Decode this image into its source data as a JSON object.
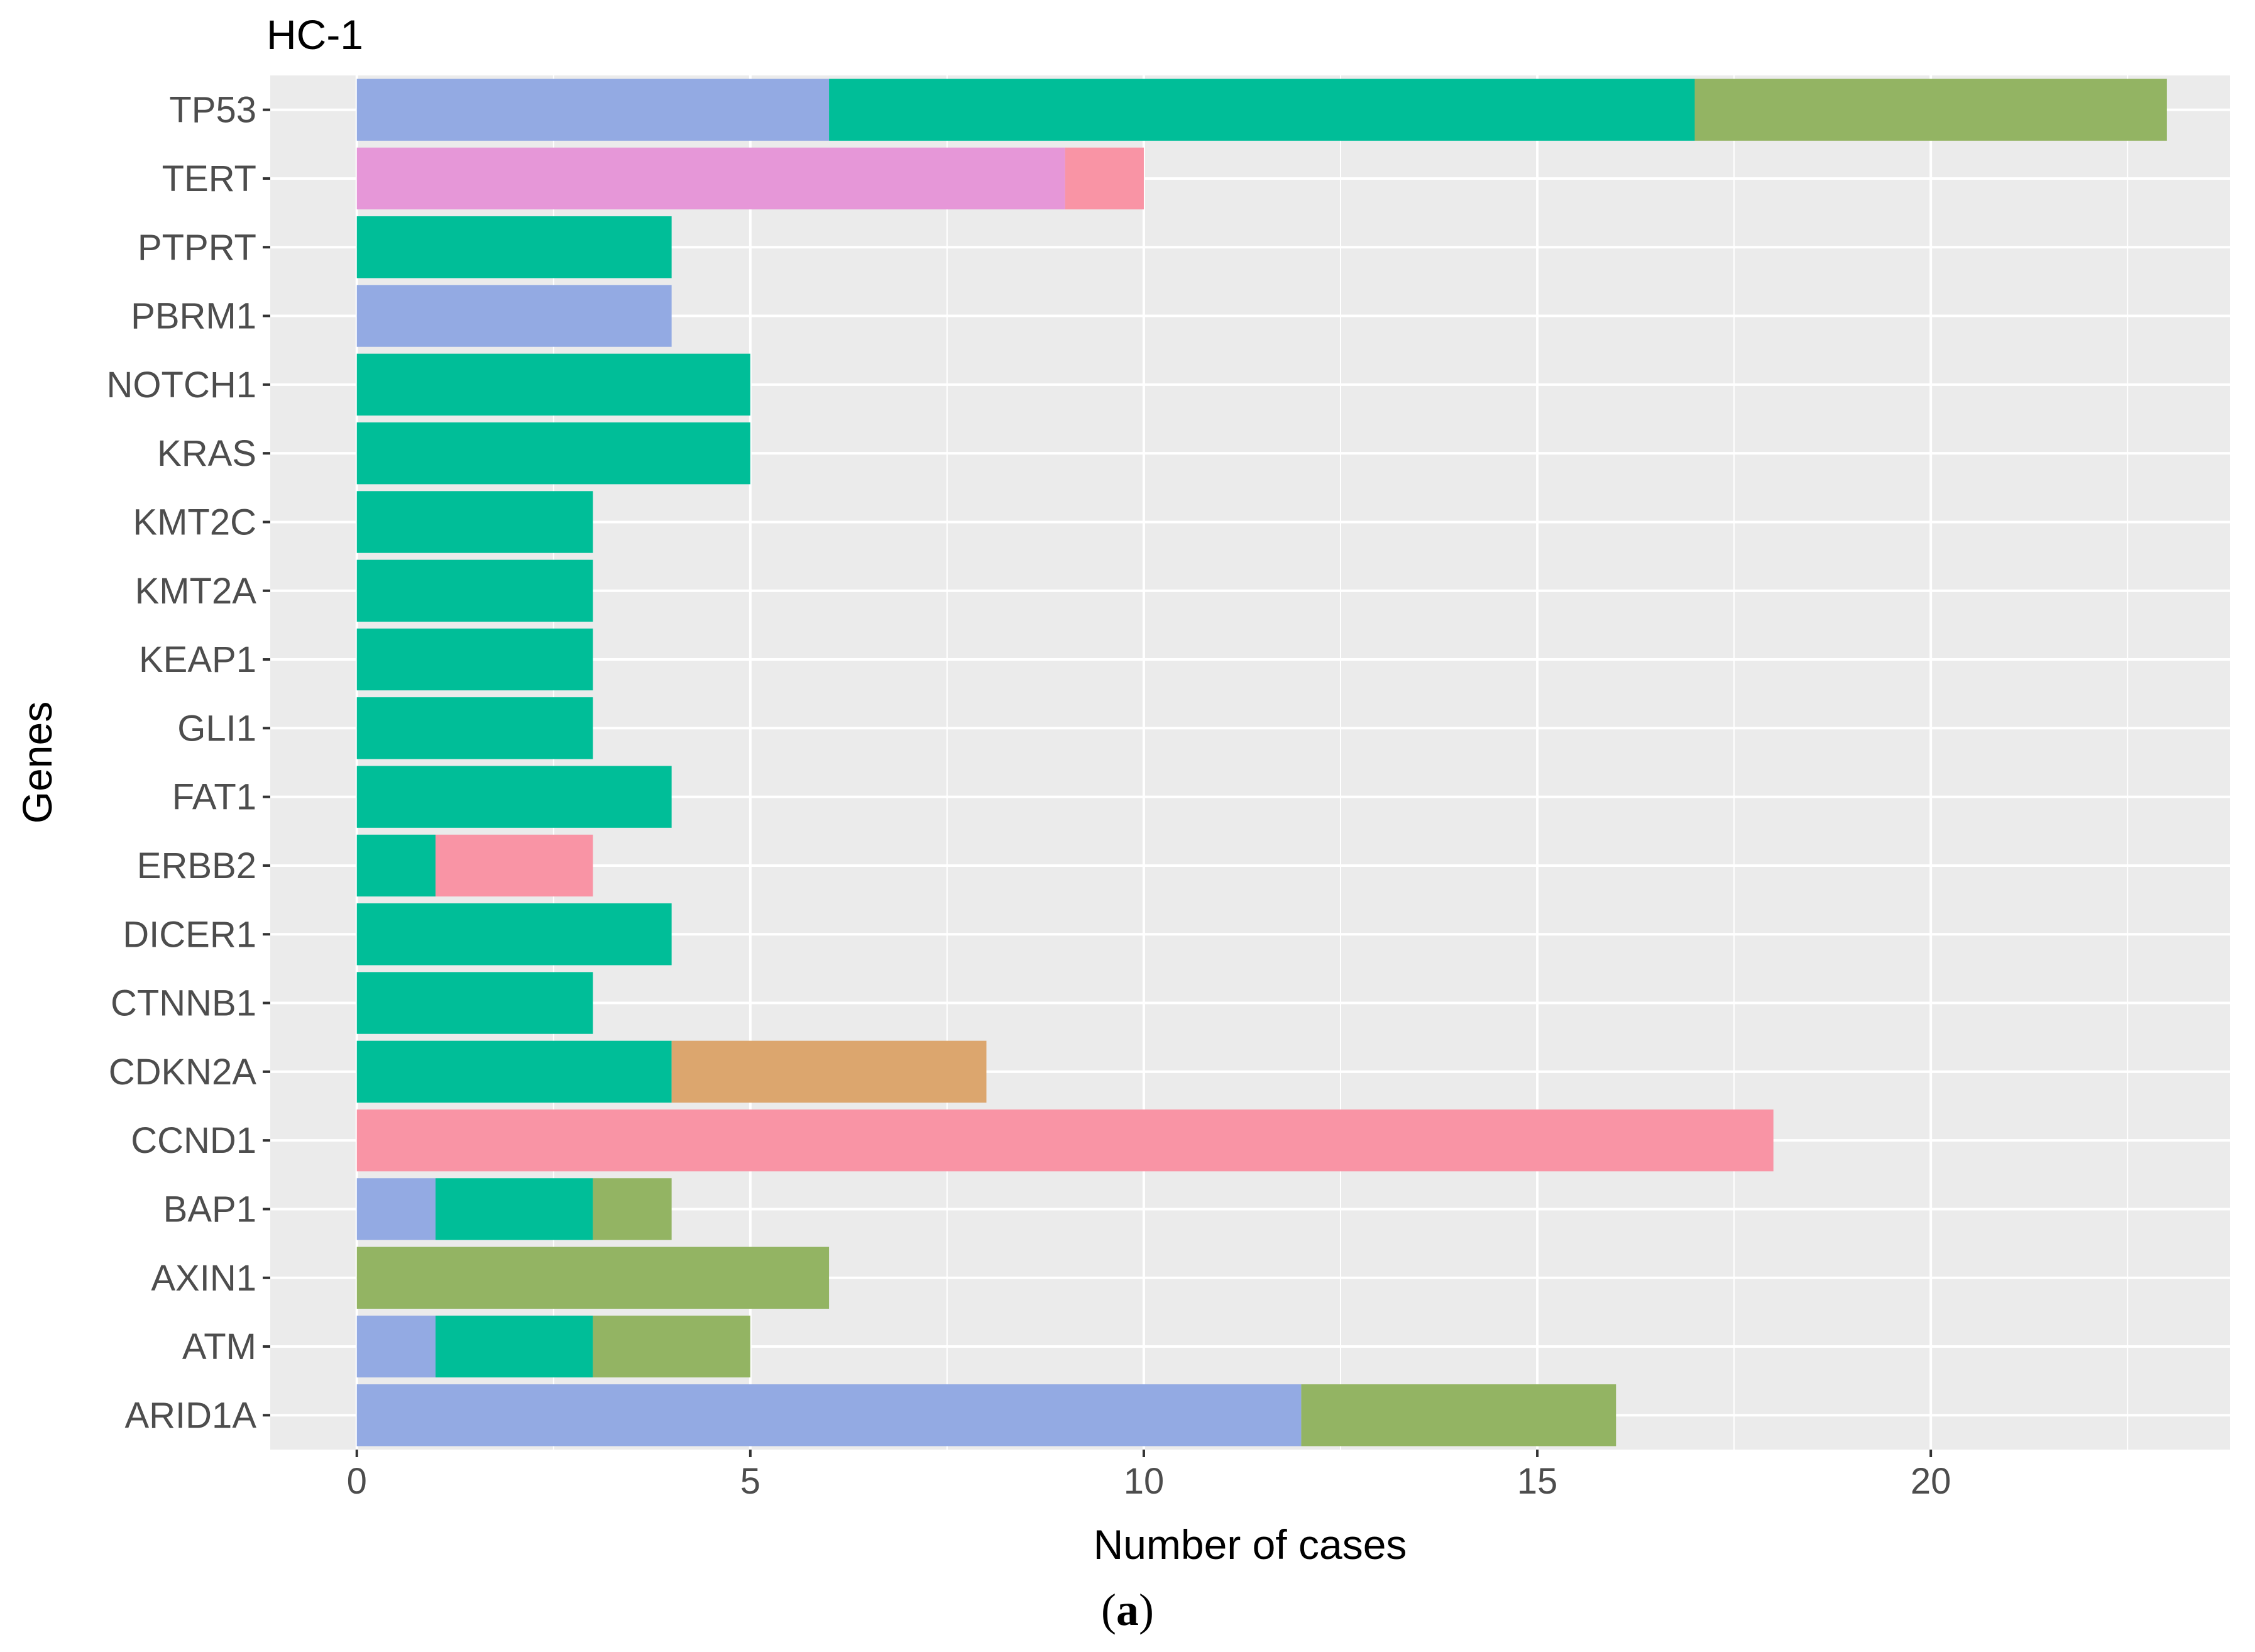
{
  "chart_data": {
    "type": "bar",
    "orientation": "horizontal",
    "stacked": true,
    "title": "HC-1",
    "xlabel": "Number of cases",
    "ylabel": "Genes",
    "xlim": [
      -1.1,
      23.8
    ],
    "x_ticks": [
      0,
      5,
      10,
      15,
      20
    ],
    "x_tick_labels": [
      "0",
      "5",
      "10",
      "15",
      "20"
    ],
    "grid": true,
    "legend": "none",
    "categories": [
      "TP53",
      "TERT",
      "PTPRT",
      "PBRM1",
      "NOTCH1",
      "KRAS",
      "KMT2C",
      "KMT2A",
      "KEAP1",
      "GLI1",
      "FAT1",
      "ERBB2",
      "DICER1",
      "CTNNB1",
      "CDKN2A",
      "CCND1",
      "BAP1",
      "AXIN1",
      "ATM",
      "ARID1A"
    ],
    "segments": [
      [
        {
          "color": "#93aae3",
          "value": 6
        },
        {
          "color": "#00be98",
          "value": 11
        },
        {
          "color": "#93b463",
          "value": 6
        }
      ],
      [
        {
          "color": "#e697d8",
          "value": 9
        },
        {
          "color": "#f994a5",
          "value": 1
        }
      ],
      [
        {
          "color": "#00be98",
          "value": 4
        }
      ],
      [
        {
          "color": "#93aae3",
          "value": 4
        }
      ],
      [
        {
          "color": "#00be98",
          "value": 5
        }
      ],
      [
        {
          "color": "#00be98",
          "value": 5
        }
      ],
      [
        {
          "color": "#00be98",
          "value": 3
        }
      ],
      [
        {
          "color": "#00be98",
          "value": 3
        }
      ],
      [
        {
          "color": "#00be98",
          "value": 3
        }
      ],
      [
        {
          "color": "#00be98",
          "value": 3
        }
      ],
      [
        {
          "color": "#00be98",
          "value": 4
        }
      ],
      [
        {
          "color": "#00be98",
          "value": 1
        },
        {
          "color": "#f994a5",
          "value": 2
        }
      ],
      [
        {
          "color": "#00be98",
          "value": 4
        }
      ],
      [
        {
          "color": "#00be98",
          "value": 3
        }
      ],
      [
        {
          "color": "#00be98",
          "value": 4
        },
        {
          "color": "#dca66e",
          "value": 4
        }
      ],
      [
        {
          "color": "#f994a5",
          "value": 18
        }
      ],
      [
        {
          "color": "#93aae3",
          "value": 1
        },
        {
          "color": "#00be98",
          "value": 2
        },
        {
          "color": "#93b463",
          "value": 1
        }
      ],
      [
        {
          "color": "#93b463",
          "value": 6
        }
      ],
      [
        {
          "color": "#93aae3",
          "value": 1
        },
        {
          "color": "#00be98",
          "value": 2
        },
        {
          "color": "#93b463",
          "value": 2
        }
      ],
      [
        {
          "color": "#93aae3",
          "value": 12
        },
        {
          "color": "#93b463",
          "value": 4
        }
      ]
    ],
    "colors": {
      "panel_background": "#ebebeb",
      "grid": "#ffffff",
      "axis_text": "#4d4d4d",
      "title_text": "#000000"
    }
  },
  "caption": {
    "open": "(",
    "label": "a",
    "close": ")"
  }
}
